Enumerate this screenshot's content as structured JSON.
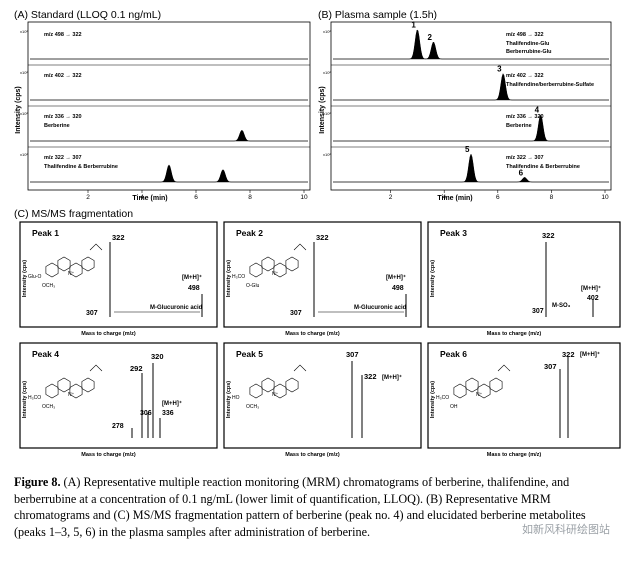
{
  "panel_a": {
    "title": "(A) Standard (LLOQ 0.1 ng/mL)",
    "ylabel": "Intensity (cps)",
    "xlabel": "Time (min)",
    "xticks": [
      "2",
      "4",
      "6",
      "8",
      "10"
    ],
    "tracks": [
      {
        "label": "m/z 498 → 322",
        "sub": "",
        "peaks": []
      },
      {
        "label": "m/z 402 → 322",
        "sub": "",
        "peaks": []
      },
      {
        "label": "m/z 336 → 320",
        "sub": "Berberine",
        "peaks": [
          {
            "x": 7.7,
            "h": 0.35
          }
        ]
      },
      {
        "label": "m/z 322 → 307",
        "sub": "Thalifendine & Berberrubine",
        "peaks": [
          {
            "x": 5.0,
            "h": 0.55
          },
          {
            "x": 7.0,
            "h": 0.4
          }
        ]
      }
    ]
  },
  "panel_b": {
    "title": "(B) Plasma sample (1.5h)",
    "ylabel": "Intensity (cps)",
    "xlabel": "Time (min)",
    "xticks": [
      "2",
      "4",
      "6",
      "8",
      "10"
    ],
    "tracks": [
      {
        "label": "m/z 498 → 322",
        "sub": "Thalifendine-Glu",
        "sub2": "Berberrubine-Glu",
        "peaks": [
          {
            "x": 3.0,
            "h": 0.95,
            "n": "1"
          },
          {
            "x": 3.6,
            "h": 0.55,
            "n": "2"
          }
        ]
      },
      {
        "label": "m/z 402 → 322",
        "sub": "Thalifendine/berberrubine-Sulfate",
        "sub2": "",
        "peaks": [
          {
            "x": 6.2,
            "h": 0.85,
            "n": "3"
          }
        ]
      },
      {
        "label": "m/z 336 → 320",
        "sub": "Berberine",
        "sub2": "",
        "peaks": [
          {
            "x": 7.6,
            "h": 0.85,
            "n": "4"
          }
        ]
      },
      {
        "label": "m/z 322 → 307",
        "sub": "Thalifendine & Berberrubine",
        "sub2": "",
        "peaks": [
          {
            "x": 5.0,
            "h": 0.9,
            "n": "5"
          },
          {
            "x": 7.0,
            "h": 0.15,
            "n": "6"
          }
        ]
      }
    ]
  },
  "panel_c": {
    "title": "(C) MS/MS fragmentation",
    "ylabel": "Intensity (cps)",
    "xlabel": "Mass to charge (m/z)",
    "peaks": [
      {
        "name": "Peak 1",
        "labels": [
          "322",
          "307",
          "[M+H]⁺",
          "498",
          "M-Glucuronic acid"
        ],
        "ring_sub": [
          "Glu-O",
          "OCH₃"
        ],
        "nplus": "N⁺"
      },
      {
        "name": "Peak 2",
        "labels": [
          "322",
          "307",
          "[M+H]⁺",
          "498",
          "M-Glucuronic acid"
        ],
        "ring_sub": [
          "H₃CO",
          "O-Glu"
        ],
        "nplus": "N⁺"
      },
      {
        "name": "Peak 3",
        "labels": [
          "322",
          "307",
          "[M+H]⁺",
          "402",
          "M-SO₃"
        ],
        "ring_sub": [],
        "nplus": ""
      },
      {
        "name": "Peak 4",
        "labels": [
          "292",
          "320",
          "278",
          "306",
          "[M+H]⁺",
          "336"
        ],
        "ring_sub": [
          "H₃CO",
          "OCH₃"
        ],
        "nplus": "N⁺"
      },
      {
        "name": "Peak 5",
        "labels": [
          "307",
          "322",
          "[M+H]⁺"
        ],
        "ring_sub": [
          "HO",
          "OCH₃"
        ],
        "nplus": "N⁺"
      },
      {
        "name": "Peak 6",
        "labels": [
          "322",
          "[M+H]⁺",
          "307"
        ],
        "ring_sub": [
          "H₃CO",
          "OH"
        ],
        "nplus": "N⁺"
      }
    ]
  },
  "caption": {
    "fig": "Figure 8.",
    "text": "(A) Representative multiple reaction monitoring (MRM) chromatograms of berberine, thalifendine, and berberrubine at a concentration of 0.1 ng/mL (lower limit of quantification, LLOQ). (B) Representative MRM chromatograms and (C) MS/MS fragmentation pattern of berberine (peak no. 4) and elucidated berberine metabolites (peaks 1–3, 5, 6) in the plasma samples after administration of berberine.",
    "watermark": "如新风科研绘图站"
  }
}
